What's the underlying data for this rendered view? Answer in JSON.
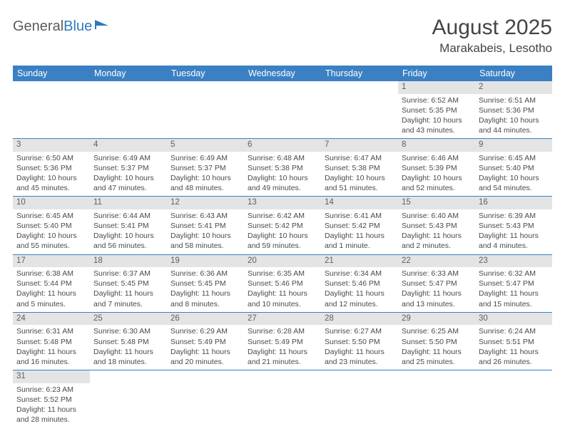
{
  "brand": {
    "part1": "General",
    "part2": "Blue"
  },
  "title": "August 2025",
  "location": "Marakabeis, Lesotho",
  "colors": {
    "header_bg": "#3a80c3",
    "header_text": "#ffffff",
    "daynum_bg": "#e4e4e4",
    "daynum_text": "#606060",
    "body_text": "#4a4a4a",
    "rule": "#3a80c3",
    "logo_gray": "#5b5b5b",
    "logo_blue": "#2f79bd",
    "page_bg": "#ffffff"
  },
  "fonts": {
    "title_pt": 30,
    "location_pt": 17,
    "weekday_pt": 12.5,
    "daynum_pt": 11.5,
    "body_pt": 10.5
  },
  "layout": {
    "columns": 7,
    "rows": 6,
    "first_day_column_index": 5
  },
  "weekdays": [
    "Sunday",
    "Monday",
    "Tuesday",
    "Wednesday",
    "Thursday",
    "Friday",
    "Saturday"
  ],
  "days": [
    {
      "n": 1,
      "sunrise": "6:52 AM",
      "sunset": "5:35 PM",
      "daylight": "10 hours and 43 minutes."
    },
    {
      "n": 2,
      "sunrise": "6:51 AM",
      "sunset": "5:36 PM",
      "daylight": "10 hours and 44 minutes."
    },
    {
      "n": 3,
      "sunrise": "6:50 AM",
      "sunset": "5:36 PM",
      "daylight": "10 hours and 45 minutes."
    },
    {
      "n": 4,
      "sunrise": "6:49 AM",
      "sunset": "5:37 PM",
      "daylight": "10 hours and 47 minutes."
    },
    {
      "n": 5,
      "sunrise": "6:49 AM",
      "sunset": "5:37 PM",
      "daylight": "10 hours and 48 minutes."
    },
    {
      "n": 6,
      "sunrise": "6:48 AM",
      "sunset": "5:38 PM",
      "daylight": "10 hours and 49 minutes."
    },
    {
      "n": 7,
      "sunrise": "6:47 AM",
      "sunset": "5:38 PM",
      "daylight": "10 hours and 51 minutes."
    },
    {
      "n": 8,
      "sunrise": "6:46 AM",
      "sunset": "5:39 PM",
      "daylight": "10 hours and 52 minutes."
    },
    {
      "n": 9,
      "sunrise": "6:45 AM",
      "sunset": "5:40 PM",
      "daylight": "10 hours and 54 minutes."
    },
    {
      "n": 10,
      "sunrise": "6:45 AM",
      "sunset": "5:40 PM",
      "daylight": "10 hours and 55 minutes."
    },
    {
      "n": 11,
      "sunrise": "6:44 AM",
      "sunset": "5:41 PM",
      "daylight": "10 hours and 56 minutes."
    },
    {
      "n": 12,
      "sunrise": "6:43 AM",
      "sunset": "5:41 PM",
      "daylight": "10 hours and 58 minutes."
    },
    {
      "n": 13,
      "sunrise": "6:42 AM",
      "sunset": "5:42 PM",
      "daylight": "10 hours and 59 minutes."
    },
    {
      "n": 14,
      "sunrise": "6:41 AM",
      "sunset": "5:42 PM",
      "daylight": "11 hours and 1 minute."
    },
    {
      "n": 15,
      "sunrise": "6:40 AM",
      "sunset": "5:43 PM",
      "daylight": "11 hours and 2 minutes."
    },
    {
      "n": 16,
      "sunrise": "6:39 AM",
      "sunset": "5:43 PM",
      "daylight": "11 hours and 4 minutes."
    },
    {
      "n": 17,
      "sunrise": "6:38 AM",
      "sunset": "5:44 PM",
      "daylight": "11 hours and 5 minutes."
    },
    {
      "n": 18,
      "sunrise": "6:37 AM",
      "sunset": "5:45 PM",
      "daylight": "11 hours and 7 minutes."
    },
    {
      "n": 19,
      "sunrise": "6:36 AM",
      "sunset": "5:45 PM",
      "daylight": "11 hours and 8 minutes."
    },
    {
      "n": 20,
      "sunrise": "6:35 AM",
      "sunset": "5:46 PM",
      "daylight": "11 hours and 10 minutes."
    },
    {
      "n": 21,
      "sunrise": "6:34 AM",
      "sunset": "5:46 PM",
      "daylight": "11 hours and 12 minutes."
    },
    {
      "n": 22,
      "sunrise": "6:33 AM",
      "sunset": "5:47 PM",
      "daylight": "11 hours and 13 minutes."
    },
    {
      "n": 23,
      "sunrise": "6:32 AM",
      "sunset": "5:47 PM",
      "daylight": "11 hours and 15 minutes."
    },
    {
      "n": 24,
      "sunrise": "6:31 AM",
      "sunset": "5:48 PM",
      "daylight": "11 hours and 16 minutes."
    },
    {
      "n": 25,
      "sunrise": "6:30 AM",
      "sunset": "5:48 PM",
      "daylight": "11 hours and 18 minutes."
    },
    {
      "n": 26,
      "sunrise": "6:29 AM",
      "sunset": "5:49 PM",
      "daylight": "11 hours and 20 minutes."
    },
    {
      "n": 27,
      "sunrise": "6:28 AM",
      "sunset": "5:49 PM",
      "daylight": "11 hours and 21 minutes."
    },
    {
      "n": 28,
      "sunrise": "6:27 AM",
      "sunset": "5:50 PM",
      "daylight": "11 hours and 23 minutes."
    },
    {
      "n": 29,
      "sunrise": "6:25 AM",
      "sunset": "5:50 PM",
      "daylight": "11 hours and 25 minutes."
    },
    {
      "n": 30,
      "sunrise": "6:24 AM",
      "sunset": "5:51 PM",
      "daylight": "11 hours and 26 minutes."
    },
    {
      "n": 31,
      "sunrise": "6:23 AM",
      "sunset": "5:52 PM",
      "daylight": "11 hours and 28 minutes."
    }
  ],
  "labels": {
    "sunrise": "Sunrise:",
    "sunset": "Sunset:",
    "daylight": "Daylight:"
  }
}
